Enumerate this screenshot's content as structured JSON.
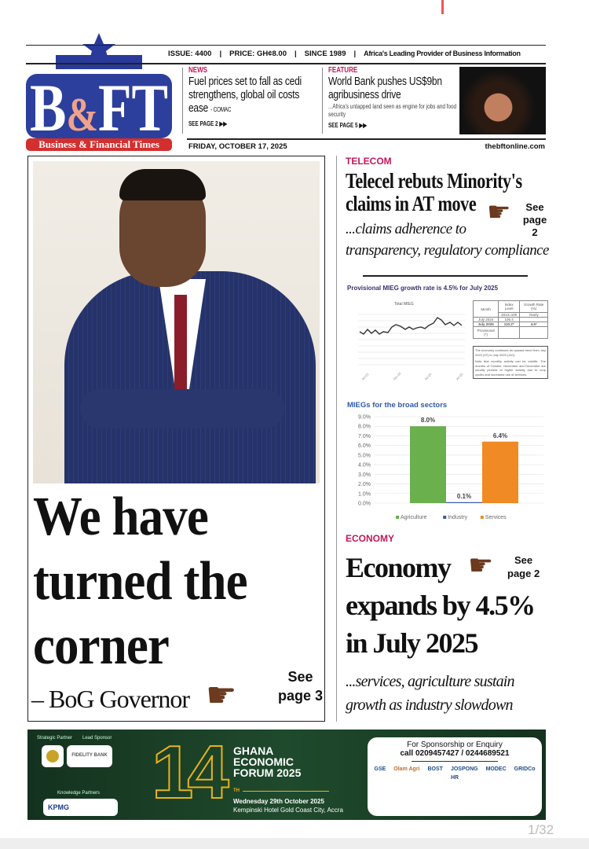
{
  "header": {
    "logo_text": "B&FT",
    "logo_tagline": "Business & Financial Times",
    "issue": "ISSUE: 4400",
    "price": "PRICE: GH¢8.00",
    "since": "SINCE 1989",
    "slogan": "Africa's Leading Provider of Business Information",
    "date": "FRIDAY, OCTOBER 17, 2025",
    "website": "thebftonline.com",
    "news": {
      "kicker": "NEWS",
      "headline": "Fuel prices set to fall as cedi strengthens, global oil costs ease",
      "source": "- COMAC",
      "see": "SEE PAGE 2"
    },
    "feature": {
      "kicker": "FEATURE",
      "headline": "World Bank pushes US$9bn agribusiness drive",
      "sub": "...Africa's untapped land seen as engine for jobs and food security",
      "see": "SEE PAGE 5"
    }
  },
  "lead": {
    "headline_lines": [
      "We have",
      "turned the",
      "corner"
    ],
    "attribution": "– BoG Governor",
    "see": "See",
    "page": "page 3"
  },
  "telecom": {
    "kicker": "TELECOM",
    "headline": "Telecel rebuts Minority's claims in AT move",
    "sub": "...claims adherence to transparency, regulatory compliance",
    "see": "See",
    "page": "page 2"
  },
  "mieg": {
    "title": "Provisional MIEG growth rate is 4.5% for July 2025",
    "chart_title": "Total MIEG",
    "table": {
      "headers": [
        "Month",
        "Index Level",
        "Growth Rate (%)"
      ],
      "subheaders": [
        "",
        "2013=100",
        "Yearly"
      ],
      "rows": [
        [
          "July 2024",
          "105.4",
          ""
        ],
        [
          "July 2025",
          "110.2*",
          "4.5*"
        ],
        [
          "Provisional (*)",
          "",
          ""
        ]
      ]
    },
    "notes": [
      "The economy continues an upward trend from July 2023 (97) to July 2025 (110).",
      "Note that monthly activity can be volatile. The months of October, November and December are usually periods of higher activity due to crop cycles and increased use of services."
    ]
  },
  "chart_data": {
    "type": "bar",
    "title": "MIEGs for the broad sectors",
    "categories": [
      "Agriculture",
      "Industry",
      "Services"
    ],
    "values": [
      8.0,
      0.1,
      6.4
    ],
    "data_labels": [
      "8.0%",
      "0.1%",
      "6.4%"
    ],
    "colors": [
      "#6ab04c",
      "#3b5ba5",
      "#f08a24"
    ],
    "yticks": [
      "0.0%",
      "1.0%",
      "2.0%",
      "3.0%",
      "4.0%",
      "5.0%",
      "6.0%",
      "7.0%",
      "8.0%",
      "9.0%"
    ],
    "ylim": [
      0,
      9
    ],
    "grid": true,
    "legend": "bottom"
  },
  "economy": {
    "kicker": "ECONOMY",
    "headline_lines": [
      "Economy",
      "expands by 4.5%",
      "in July 2025"
    ],
    "sub": "...services, agriculture sustain growth as industry slowdown",
    "see": "See",
    "page": "page 2"
  },
  "ad": {
    "strategic_partner": "Strategic Partner",
    "lead_sponsor": "Lead Sponsor",
    "sponsor": "FIDELITY BANK",
    "knowledge_partners": "Knowledge Partners",
    "kpmg": "KPMG",
    "number": "14",
    "suffix": "TH",
    "event_lines": [
      "GHANA",
      "ECONOMIC",
      "FORUM 2025"
    ],
    "date": "Wednesday 29th October 2025",
    "venue": "Kempinski Hotel Gold Coast City, Accra",
    "enquiry": "For Sponsorship or Enquiry",
    "phone": "call 0209457427 / 0244689521",
    "partners": [
      "GSE",
      "Olam Agri",
      "BOST",
      "JOSPONG",
      "MODEC",
      "GRIDCo",
      "HR"
    ]
  },
  "viewer": {
    "page_indicator": "1/32"
  }
}
